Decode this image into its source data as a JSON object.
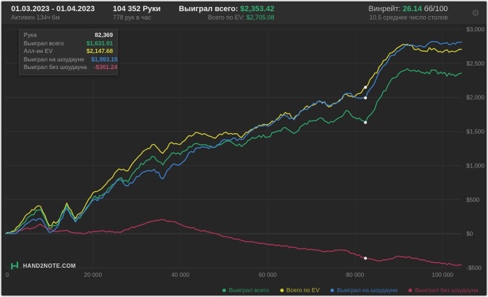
{
  "header": {
    "period": {
      "title": "01.03.2023 - 01.04.2023",
      "subtitle": "Активен 134ч 6м"
    },
    "hands": {
      "title": "104 352 Руки",
      "subtitle": "778 рук в час"
    },
    "won": {
      "label": "Выиграл всего:",
      "value": "$2,353.42",
      "sub_label": "Всего по EV:",
      "sub_value": "$2,705.08"
    },
    "winrate": {
      "label": "Винрейт:",
      "value": "26.14",
      "unit": "бб/100",
      "subtitle": "10.5 среднее число столов"
    },
    "gear_icon": "⚙"
  },
  "tooltip": {
    "rows": [
      {
        "label": "Рука",
        "value": "82,369",
        "color": "#e6e6e6"
      },
      {
        "label": "Выиграл всего",
        "value": "$1,631.91",
        "color": "#2bab6e"
      },
      {
        "label": "Алл-ин EV",
        "value": "$2,147.68",
        "color": "#d9d335"
      },
      {
        "label": "Выиграл на шоудауне",
        "value": "$1,993.15",
        "color": "#3b86d8"
      },
      {
        "label": "Выиграл без шоудауна",
        "value": "-$361.24",
        "color": "#c04a6a"
      }
    ]
  },
  "watermark": "HAND2NOTE.COM",
  "colors": {
    "background": "#262626",
    "header_background": "#2e2e2e",
    "accent_green": "#2fb576",
    "grid": "#323232",
    "tick_text": "#8b8b8b"
  },
  "chart_data": {
    "type": "line",
    "title": "Winnings graph",
    "xlabel": "",
    "ylabel": "",
    "grid": true,
    "legend_position": "bottom-right",
    "xlim": [
      0,
      104352
    ],
    "ylim": [
      -500,
      3000
    ],
    "x_ticks": [
      0,
      20000,
      40000,
      60000,
      80000,
      100000
    ],
    "x_tick_labels": [
      "0",
      "20 000",
      "40 000",
      "60 000",
      "80 000",
      "100 000"
    ],
    "y_ticks": [
      -500,
      0,
      500,
      1000,
      1500,
      2000,
      2500,
      3000
    ],
    "y_tick_labels": [
      "-$500",
      "$0",
      "$500",
      "$1,000",
      "$1,500",
      "$2,000",
      "$2,500",
      "$3,000"
    ],
    "x": [
      0,
      2000,
      4000,
      6000,
      8000,
      10000,
      12000,
      14000,
      16000,
      18000,
      20000,
      22000,
      24000,
      26000,
      28000,
      30000,
      32000,
      34000,
      36000,
      38000,
      40000,
      42000,
      44000,
      46000,
      48000,
      50000,
      52000,
      54000,
      56000,
      58000,
      60000,
      62000,
      64000,
      66000,
      68000,
      70000,
      72000,
      74000,
      76000,
      78000,
      80000,
      82369,
      84000,
      86000,
      88000,
      90000,
      92000,
      94000,
      96000,
      98000,
      100000,
      102000,
      104352
    ],
    "series": [
      {
        "name": "Выиграл всего",
        "color": "#2bab6e",
        "values": [
          0,
          30,
          150,
          280,
          360,
          80,
          140,
          420,
          180,
          320,
          520,
          560,
          680,
          810,
          760,
          950,
          1060,
          1130,
          1010,
          1180,
          1160,
          1280,
          1320,
          1300,
          1270,
          1340,
          1330,
          1280,
          1380,
          1440,
          1420,
          1500,
          1560,
          1470,
          1590,
          1650,
          1700,
          1620,
          1690,
          1810,
          1700,
          1631.91,
          1780,
          2020,
          2230,
          2350,
          2420,
          2380,
          2350,
          2400,
          2350,
          2330,
          2353.42
        ]
      },
      {
        "name": "Всего по EV",
        "color": "#d9d335",
        "values": [
          0,
          40,
          200,
          350,
          400,
          120,
          180,
          450,
          220,
          380,
          600,
          660,
          800,
          950,
          920,
          1100,
          1230,
          1310,
          1180,
          1340,
          1310,
          1440,
          1480,
          1450,
          1400,
          1480,
          1460,
          1410,
          1520,
          1590,
          1600,
          1680,
          1780,
          1690,
          1810,
          1880,
          1940,
          1860,
          1930,
          2050,
          2020,
          2147.68,
          2300,
          2480,
          2650,
          2740,
          2780,
          2700,
          2680,
          2720,
          2660,
          2680,
          2705.08
        ]
      },
      {
        "name": "Выиграл на шоудауне",
        "color": "#3b86d8",
        "values": [
          0,
          0,
          90,
          200,
          220,
          20,
          110,
          370,
          170,
          320,
          490,
          520,
          650,
          790,
          700,
          840,
          910,
          945,
          805,
          1000,
          1020,
          1190,
          1260,
          1270,
          1270,
          1380,
          1400,
          1380,
          1500,
          1580,
          1575,
          1670,
          1740,
          1670,
          1810,
          1880,
          1950,
          1880,
          1930,
          2060,
          2000,
          1993.15,
          2160,
          2420,
          2600,
          2680,
          2765,
          2740,
          2740,
          2820,
          2790,
          2780,
          2814.08
        ]
      },
      {
        "name": "Выиграл без шоудауна",
        "color": "#bb3357",
        "values": [
          0,
          30,
          60,
          80,
          140,
          60,
          30,
          50,
          10,
          0,
          30,
          40,
          30,
          20,
          60,
          110,
          150,
          185,
          205,
          180,
          140,
          90,
          60,
          30,
          0,
          -40,
          -70,
          -100,
          -120,
          -140,
          -155,
          -170,
          -180,
          -200,
          -220,
          -230,
          -250,
          -260,
          -240,
          -250,
          -300,
          -361.24,
          -380,
          -400,
          -370,
          -330,
          -345,
          -360,
          -390,
          -420,
          -440,
          -450,
          -460.66
        ]
      }
    ],
    "hover_point": {
      "x": 82369,
      "values": [
        1631.91,
        2147.68,
        1993.15,
        -361.24
      ]
    }
  }
}
